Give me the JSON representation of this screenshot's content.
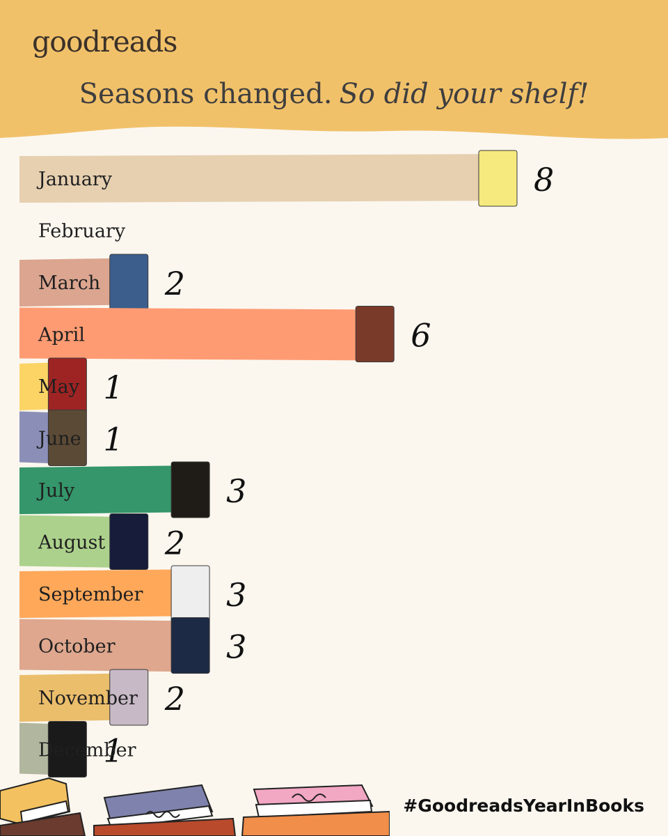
{
  "brand": {
    "logo_text": "goodreads"
  },
  "headline": {
    "main": "Seasons changed.",
    "emphasis": "So did your shelf!"
  },
  "hashtag": "#GoodreadsYearInBooks",
  "colors": {
    "header_bg": "#f1c16a",
    "page_bg": "#fbf7ef"
  },
  "chart_data": {
    "type": "bar",
    "orientation": "horizontal",
    "categories": [
      "January",
      "February",
      "March",
      "April",
      "May",
      "June",
      "July",
      "August",
      "September",
      "October",
      "November",
      "December"
    ],
    "values": [
      8,
      0,
      2,
      6,
      1,
      1,
      3,
      2,
      3,
      3,
      2,
      1
    ],
    "colors": [
      "#e6d0b0",
      "#fbf7ef",
      "#dba58f",
      "#ff9b73",
      "#fcd465",
      "#8b8fb7",
      "#34966a",
      "#acd18c",
      "#ffa85a",
      "#dea78e",
      "#ebbe6c",
      "#b1b69e"
    ],
    "cover_colors": [
      "#f6ea7f",
      null,
      "#3b5e8c",
      "#7a3a2a",
      "#9e2424",
      "#5b4a35",
      "#1f1b16",
      "#161c3a",
      "#eeeeee",
      "#1d2a45",
      "#c7b9c5",
      "#1a1a1a"
    ],
    "title": "",
    "xlabel": "",
    "ylabel": "",
    "xlim": [
      0,
      8
    ]
  }
}
